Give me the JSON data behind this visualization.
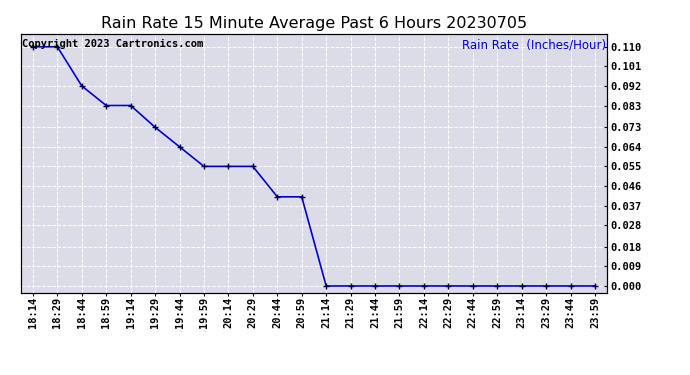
{
  "title": "Rain Rate 15 Minute Average Past 6 Hours 20230705",
  "ylabel_right": "Rain Rate  (Inches/Hour)",
  "copyright_text": "Copyright 2023 Cartronics.com",
  "background_color": "#ffffff",
  "plot_bg_color": "#dcdce8",
  "line_color": "#0000cc",
  "marker_color": "#000044",
  "grid_color": "#ffffff",
  "x_labels": [
    "18:14",
    "18:29",
    "18:44",
    "18:59",
    "19:14",
    "19:29",
    "19:44",
    "19:59",
    "20:14",
    "20:29",
    "20:44",
    "20:59",
    "21:14",
    "21:29",
    "21:44",
    "21:59",
    "22:14",
    "22:29",
    "22:44",
    "22:59",
    "23:14",
    "23:29",
    "23:44",
    "23:59"
  ],
  "y_values": [
    0.11,
    0.11,
    0.092,
    0.083,
    0.083,
    0.073,
    0.064,
    0.055,
    0.055,
    0.055,
    0.041,
    0.041,
    0.0,
    0.0,
    0.0,
    0.0,
    0.0,
    0.0,
    0.0,
    0.0,
    0.0,
    0.0,
    0.0,
    0.0
  ],
  "yticks": [
    0.0,
    0.009,
    0.018,
    0.028,
    0.037,
    0.046,
    0.055,
    0.064,
    0.073,
    0.083,
    0.092,
    0.101,
    0.11
  ],
  "ylim": [
    -0.003,
    0.116
  ],
  "title_fontsize": 11.5,
  "label_fontsize": 8.5,
  "tick_fontsize": 7.5,
  "copyright_fontsize": 7.5
}
